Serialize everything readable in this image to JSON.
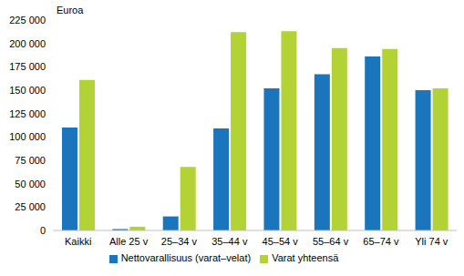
{
  "chart_data": {
    "type": "bar",
    "subtitle": "Euroa",
    "categories": [
      "Kaikki",
      "Alle 25 v",
      "25–34 v",
      "35–44 v",
      "45–54 v",
      "55–64 v",
      "65–74 v",
      "Yli 74 v"
    ],
    "series": [
      {
        "name": "Nettovarallisuus (varat–velat)",
        "color": "#1b75bc",
        "values": [
          110000,
          1500,
          15000,
          109000,
          152000,
          167000,
          186000,
          150000
        ]
      },
      {
        "name": "Varat yhteensä",
        "color": "#b2d235",
        "values": [
          161000,
          4000,
          68000,
          212000,
          213000,
          195000,
          194000,
          152000
        ]
      }
    ],
    "ylim": [
      0,
      225000
    ],
    "yticks": [
      0,
      {
        "value": 25000,
        "label": "25 000"
      },
      {
        "value": 50000,
        "label": "50 000"
      },
      {
        "value": 75000,
        "label": "75 000"
      },
      {
        "value": 100000,
        "label": "100 000"
      },
      {
        "value": 125000,
        "label": "125 000"
      },
      {
        "value": 150000,
        "label": "150 000"
      },
      {
        "value": 175000,
        "label": "175 000"
      },
      {
        "value": 200000,
        "label": "200 000"
      },
      {
        "value": 225000,
        "label": "225 000"
      }
    ],
    "grid": false,
    "legend": "bottom"
  }
}
